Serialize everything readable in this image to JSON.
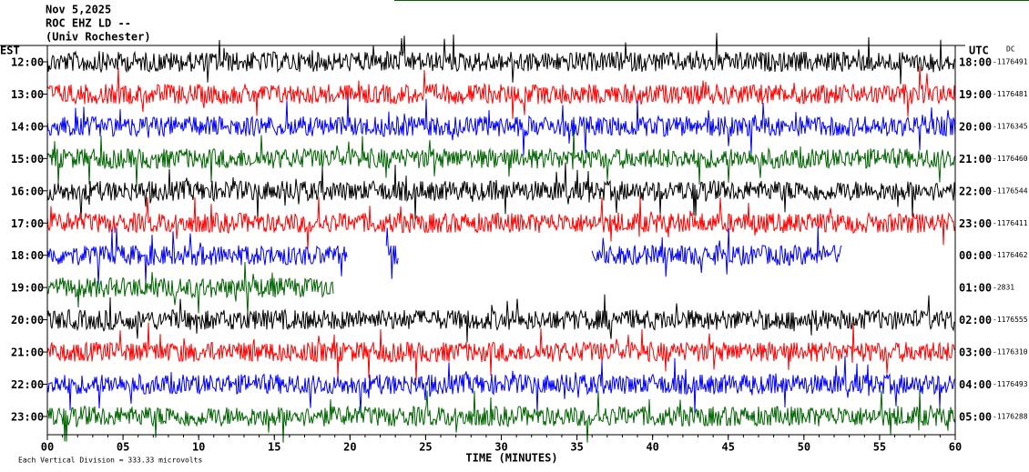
{
  "header": {
    "date": "Nov 5,2025",
    "station": "ROC EHZ LD --",
    "place": "(Univ Rochester)",
    "left_zone": "EST",
    "right_zone": "UTC",
    "dc": "DC"
  },
  "chart_data": {
    "type": "helicorder",
    "xlim": [
      0,
      60
    ],
    "xticks": [
      {
        "value": 0,
        "label": "00"
      },
      {
        "value": 5,
        "label": "05"
      },
      10,
      15,
      20,
      25,
      30,
      35,
      40,
      45,
      50,
      55,
      60
    ],
    "xlabel": "TIME (MINUTES)",
    "rows": [
      {
        "est": "12:00",
        "utc": "18:00",
        "offset": -1176491,
        "color": "#000000",
        "spans": [
          [
            0,
            60
          ]
        ]
      },
      {
        "est": "13:00",
        "utc": "19:00",
        "offset": -1176481,
        "color": "#ff0000",
        "spans": [
          [
            0,
            60
          ]
        ]
      },
      {
        "est": "14:00",
        "utc": "20:00",
        "offset": -1176345,
        "color": "#0000ff",
        "spans": [
          [
            0,
            60
          ]
        ]
      },
      {
        "est": "15:00",
        "utc": "21:00",
        "offset": -1176460,
        "color": "#006400",
        "spans": [
          [
            0,
            60
          ]
        ]
      },
      {
        "est": "16:00",
        "utc": "22:00",
        "offset": -1176544,
        "color": "#000000",
        "spans": [
          [
            0,
            60
          ]
        ]
      },
      {
        "est": "17:00",
        "utc": "23:00",
        "offset": -1176411,
        "color": "#ff0000",
        "spans": [
          [
            0,
            60
          ]
        ]
      },
      {
        "est": "18:00",
        "utc": "00:00",
        "offset": -1176462,
        "color": "#0000ff",
        "spans": [
          [
            0,
            19.8
          ],
          [
            22.4,
            23.2
          ],
          [
            36,
            52.5
          ]
        ]
      },
      {
        "est": "19:00",
        "utc": "01:00",
        "offset": -2831,
        "color": "#006400",
        "spans": [
          [
            0,
            18.9
          ]
        ]
      },
      {
        "est": "20:00",
        "utc": "02:00",
        "offset": -1176555,
        "color": "#000000",
        "spans": [
          [
            0,
            60
          ]
        ]
      },
      {
        "est": "21:00",
        "utc": "03:00",
        "offset": -1176310,
        "color": "#ff0000",
        "spans": [
          [
            0,
            60
          ]
        ]
      },
      {
        "est": "22:00",
        "utc": "04:00",
        "offset": -1176493,
        "color": "#0000ff",
        "spans": [
          [
            0,
            60
          ]
        ]
      },
      {
        "est": "23:00",
        "utc": "05:00",
        "offset": -1176288,
        "color": "#006400",
        "spans": [
          [
            0,
            60
          ]
        ]
      }
    ],
    "footnote": "Each Vertical Division =  333.33 microvolts"
  }
}
